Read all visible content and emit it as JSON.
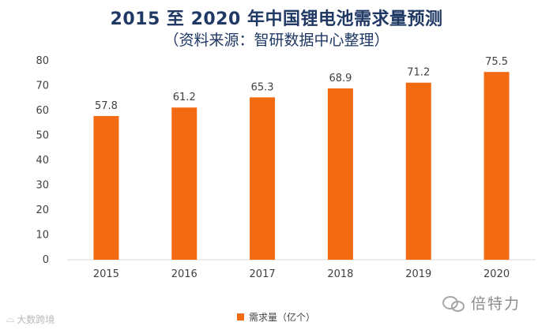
{
  "chart_data": {
    "type": "bar",
    "title": "2015 至 2020 年中国锂电池需求量预测",
    "subtitle": "（资料来源：智研数据中心整理）",
    "categories": [
      "2015",
      "2016",
      "2017",
      "2018",
      "2019",
      "2020"
    ],
    "series": [
      {
        "name": "需求量（亿个）",
        "values": [
          57.8,
          61.2,
          65.3,
          68.9,
          71.2,
          75.5
        ]
      }
    ],
    "data_labels": [
      "57.8",
      "61.2",
      "65.3",
      "68.9",
      "71.2",
      "75.5"
    ],
    "ylim": [
      0,
      80
    ],
    "yticks": [
      0,
      10,
      20,
      30,
      40,
      50,
      60,
      70,
      80
    ],
    "grid": false,
    "legend_position": "bottom",
    "bar_color": "#f26a12",
    "title_color": "#1f3864"
  },
  "watermarks": {
    "left": "大数跨境",
    "left_icon": "weibo-icon",
    "right": "倍特力",
    "right_icon": "wechat-icon"
  }
}
